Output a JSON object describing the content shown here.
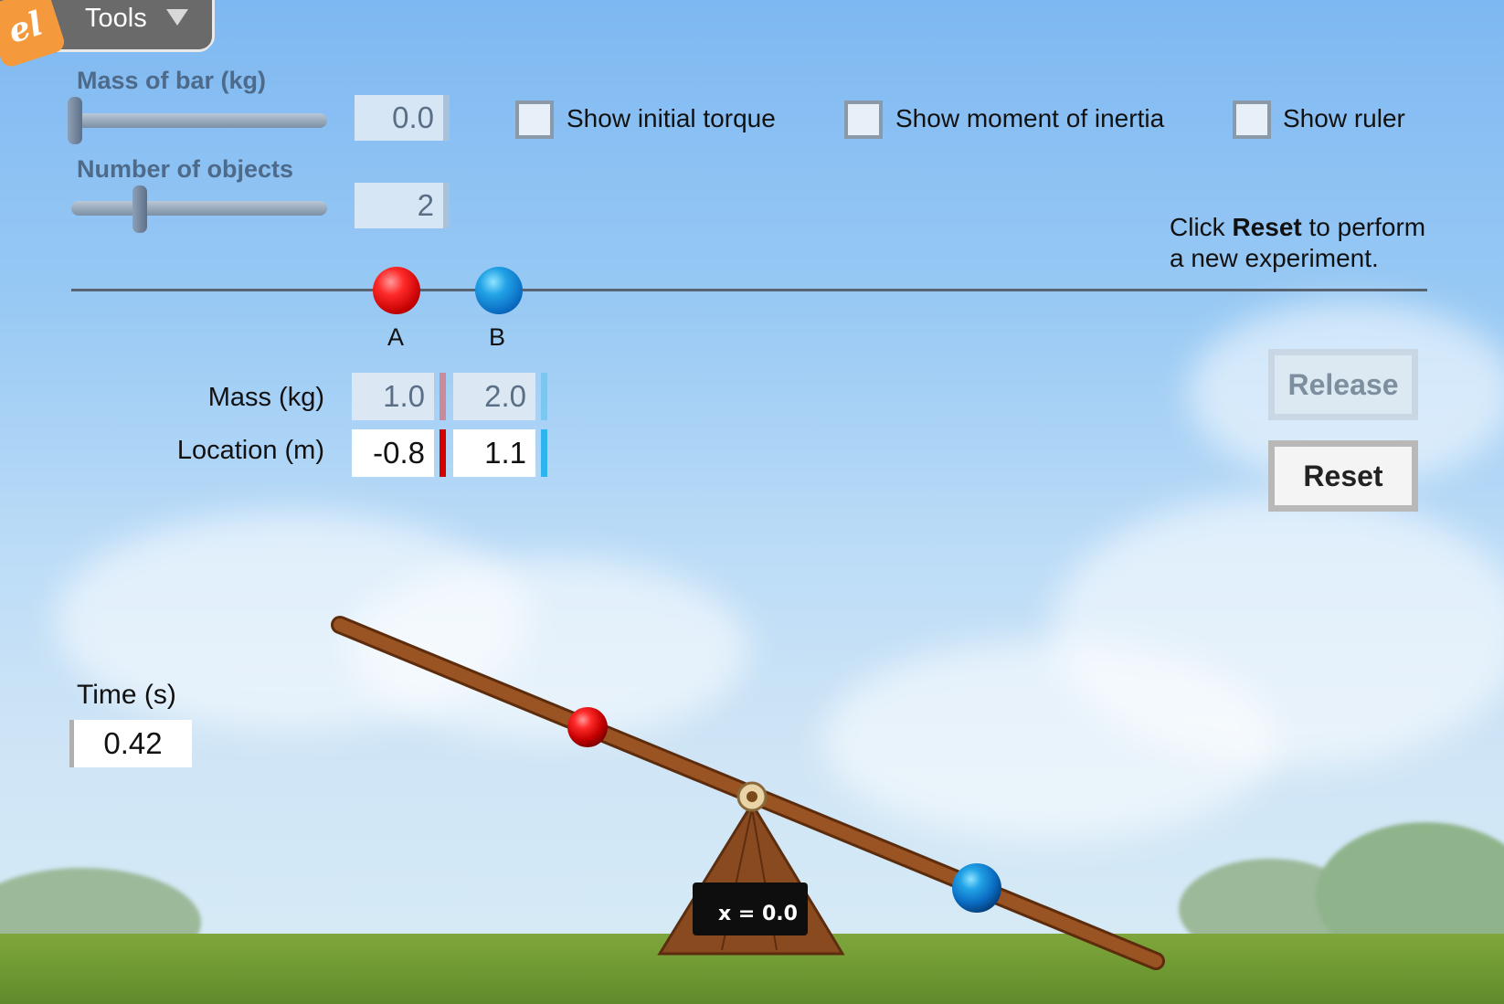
{
  "app": {
    "logo_text": "el",
    "tools_label": "Tools"
  },
  "controls": {
    "mass_of_bar": {
      "label": "Mass of bar (kg)",
      "value": "0.0",
      "slider_fraction": 0.0
    },
    "number_of_objects": {
      "label": "Number of objects",
      "value": "2",
      "slider_fraction": 0.25
    },
    "checkboxes": [
      {
        "label": "Show initial torque",
        "checked": false
      },
      {
        "label": "Show moment of inertia",
        "checked": false
      },
      {
        "label": "Show ruler",
        "checked": false
      }
    ]
  },
  "hint": {
    "prefix": "Click ",
    "bold": "Reset",
    "suffix_line1": " to perform",
    "line2": "a new experiment."
  },
  "objects": [
    {
      "name": "A",
      "color": "#e01010",
      "mass": "1.0",
      "location": "-0.8"
    },
    {
      "name": "B",
      "color": "#1a8fde",
      "mass": "2.0",
      "location": "1.1"
    }
  ],
  "table": {
    "mass_label": "Mass (kg)",
    "location_label": "Location (m)"
  },
  "buttons": {
    "release": "Release",
    "reset": "Reset"
  },
  "time": {
    "label": "Time (s)",
    "value": "0.42"
  },
  "fulcrum": {
    "label": "x = 0.0"
  }
}
